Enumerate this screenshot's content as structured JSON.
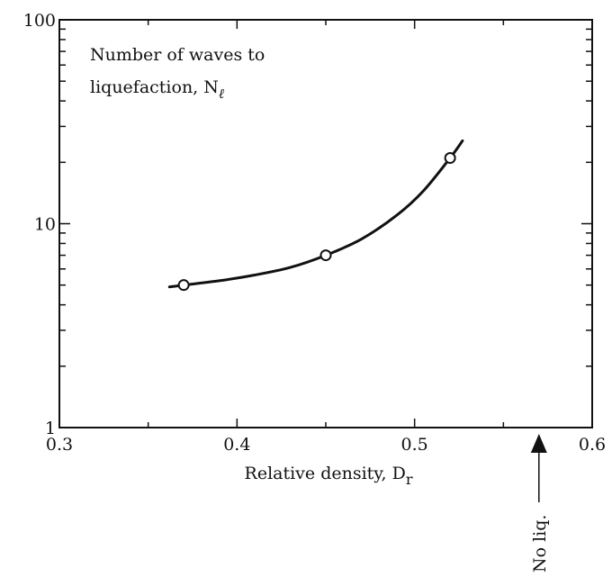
{
  "chart_data": {
    "type": "line",
    "title": "",
    "annotation": {
      "line1": "Number of waves to",
      "line2_prefix": "liquefaction, N",
      "line2_subscript": "ℓ"
    },
    "xlabel": {
      "prefix": "Relative density, D",
      "subscript": "r"
    },
    "ylabel": "",
    "x_scale": "linear",
    "y_scale": "log",
    "xlim": [
      0.3,
      0.6
    ],
    "ylim": [
      1,
      100
    ],
    "x_ticks": [
      0.3,
      0.4,
      0.5,
      0.6
    ],
    "x_tick_labels": [
      "0.3",
      "0.4",
      "0.5",
      "0.6"
    ],
    "y_ticks": [
      1,
      10,
      100
    ],
    "y_tick_labels": [
      "1",
      "10",
      "100"
    ],
    "grid": false,
    "series": [
      {
        "points": [
          {
            "x": 0.37,
            "y": 5.0
          },
          {
            "x": 0.45,
            "y": 7.0
          },
          {
            "x": 0.52,
            "y": 21.0
          }
        ],
        "curve": [
          {
            "x": 0.362,
            "y": 4.9
          },
          {
            "x": 0.37,
            "y": 5.0
          },
          {
            "x": 0.39,
            "y": 5.25
          },
          {
            "x": 0.41,
            "y": 5.6
          },
          {
            "x": 0.43,
            "y": 6.1
          },
          {
            "x": 0.45,
            "y": 7.0
          },
          {
            "x": 0.47,
            "y": 8.4
          },
          {
            "x": 0.49,
            "y": 11.0
          },
          {
            "x": 0.505,
            "y": 14.5
          },
          {
            "x": 0.52,
            "y": 21.0
          },
          {
            "x": 0.527,
            "y": 25.5
          }
        ]
      }
    ],
    "marker": {
      "x": 0.57,
      "label": "No liq."
    }
  }
}
